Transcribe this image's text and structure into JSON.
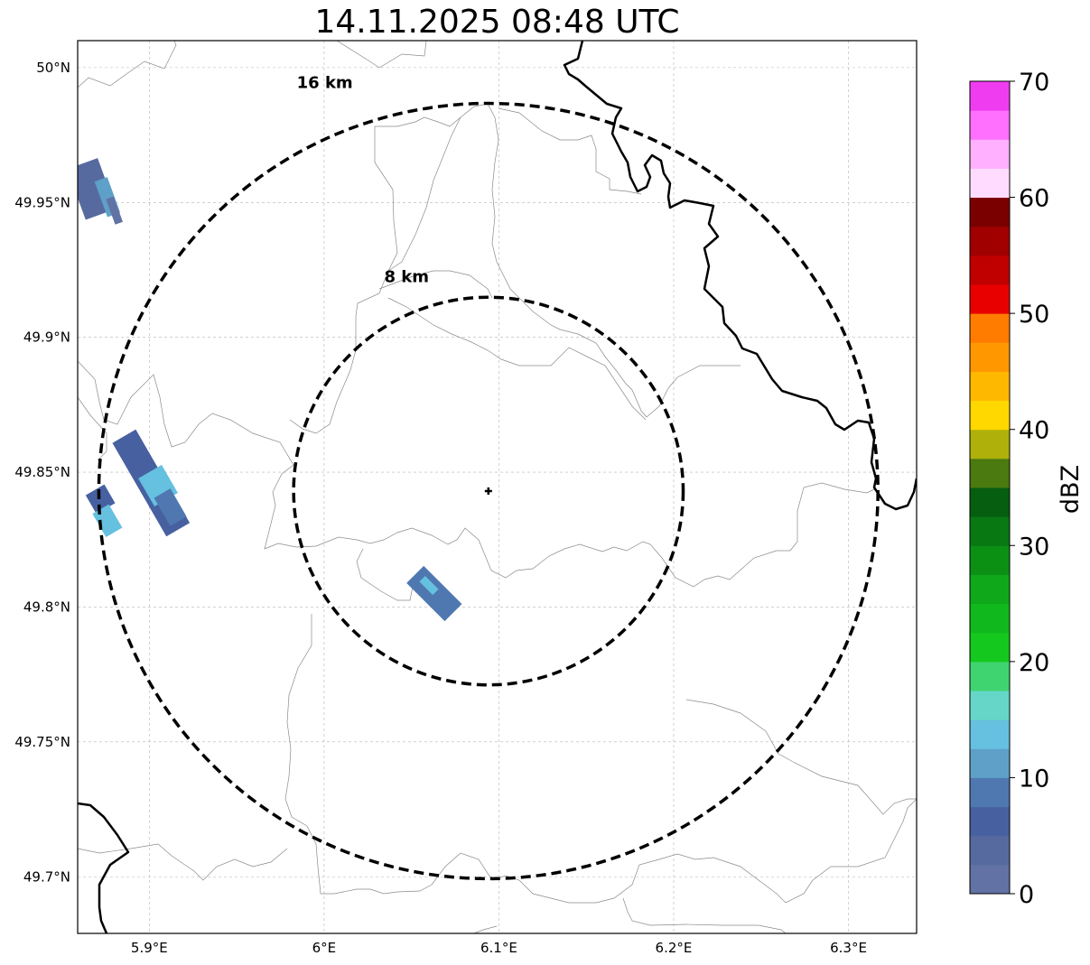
{
  "title": "14.11.2025 08:48 UTC",
  "map": {
    "lon_range": [
      5.859,
      6.339
    ],
    "lat_range": [
      49.679,
      50.01
    ],
    "lon_ticks": [
      {
        "value": 5.9,
        "label": "5.9°E"
      },
      {
        "value": 6.0,
        "label": "6°E"
      },
      {
        "value": 6.1,
        "label": "6.1°E"
      },
      {
        "value": 6.2,
        "label": "6.2°E"
      },
      {
        "value": 6.3,
        "label": "6.3°E"
      }
    ],
    "lat_ticks": [
      {
        "value": 50.0,
        "label": "50°N"
      },
      {
        "value": 49.95,
        "label": "49.95°N"
      },
      {
        "value": 49.9,
        "label": "49.9°N"
      },
      {
        "value": 49.85,
        "label": "49.85°N"
      },
      {
        "value": 49.8,
        "label": "49.8°N"
      },
      {
        "value": 49.75,
        "label": "49.75°N"
      },
      {
        "value": 49.7,
        "label": "49.7°N"
      }
    ],
    "radar_site": {
      "lon": 6.094,
      "lat": 49.843
    },
    "range_rings": [
      {
        "radius_km": 8,
        "label": "8 km"
      },
      {
        "radius_km": 16,
        "label": "16 km"
      }
    ],
    "echo_cells": [
      {
        "lon": 5.867,
        "lat": 49.955,
        "length_deg": 0.02,
        "width_deg": 0.012,
        "bearing": 160,
        "dbz": 3
      },
      {
        "lon": 5.876,
        "lat": 49.952,
        "length_deg": 0.014,
        "width_deg": 0.005,
        "bearing": 160,
        "dbz": 12
      },
      {
        "lon": 5.88,
        "lat": 49.947,
        "length_deg": 0.01,
        "width_deg": 0.003,
        "bearing": 160,
        "dbz": 1
      },
      {
        "lon": 5.901,
        "lat": 49.846,
        "length_deg": 0.04,
        "width_deg": 0.01,
        "bearing": 150,
        "dbz": 5
      },
      {
        "lon": 5.905,
        "lat": 49.845,
        "length_deg": 0.012,
        "width_deg": 0.01,
        "bearing": 150,
        "dbz": 14
      },
      {
        "lon": 5.912,
        "lat": 49.837,
        "length_deg": 0.012,
        "width_deg": 0.007,
        "bearing": 150,
        "dbz": 9
      },
      {
        "lon": 5.872,
        "lat": 49.84,
        "length_deg": 0.008,
        "width_deg": 0.008,
        "bearing": 150,
        "dbz": 6
      },
      {
        "lon": 5.876,
        "lat": 49.832,
        "length_deg": 0.01,
        "width_deg": 0.007,
        "bearing": 150,
        "dbz": 14
      },
      {
        "lon": 6.063,
        "lat": 49.805,
        "length_deg": 0.02,
        "width_deg": 0.009,
        "bearing": 135,
        "dbz": 9
      },
      {
        "lon": 6.06,
        "lat": 49.808,
        "length_deg": 0.007,
        "width_deg": 0.003,
        "bearing": 135,
        "dbz": 14
      }
    ]
  },
  "colorbar": {
    "label": "dBZ",
    "min": 0,
    "max": 70,
    "step": 2.5,
    "tick_labels": [
      "0",
      "10",
      "20",
      "30",
      "40",
      "50",
      "60",
      "70"
    ],
    "colors": [
      "#6272a4",
      "#566aa0",
      "#4760a0",
      "#4f78b0",
      "#5ea0c8",
      "#66c0e0",
      "#66d6c8",
      "#40d470",
      "#14c81e",
      "#10b81e",
      "#0ea81a",
      "#0c9014",
      "#087812",
      "#065e10",
      "#4a7a10",
      "#b0b00a",
      "#ffd800",
      "#ffb800",
      "#ff9800",
      "#ff7c00",
      "#e80000",
      "#c00000",
      "#a00000",
      "#7a0000",
      "#ffdcff",
      "#ffb0ff",
      "#ff70ff",
      "#f03cf0"
    ]
  }
}
